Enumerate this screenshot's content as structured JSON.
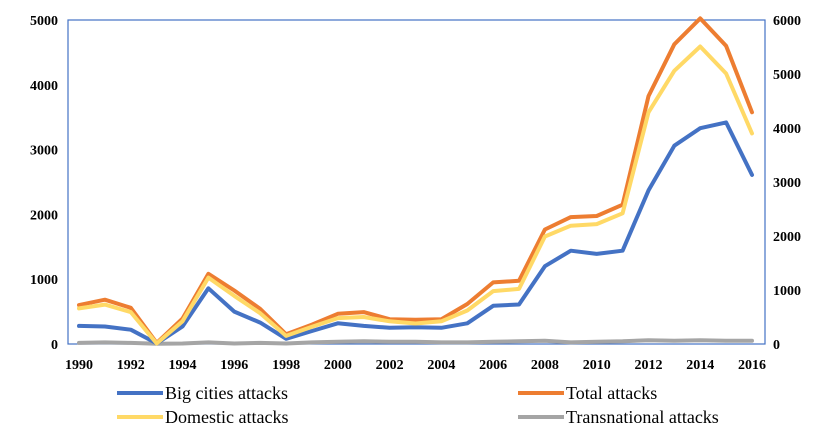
{
  "chart_data": {
    "type": "line",
    "title": "",
    "xlabel": "",
    "ylabel": "",
    "x": [
      1990,
      1991,
      1992,
      1993,
      1994,
      1995,
      1996,
      1997,
      1998,
      1999,
      2000,
      2001,
      2002,
      2003,
      2004,
      2005,
      2006,
      2007,
      2008,
      2009,
      2010,
      2011,
      2012,
      2013,
      2014,
      2015,
      2016
    ],
    "x_tick_labels": [
      "1990",
      "1992",
      "1994",
      "1996",
      "1998",
      "2000",
      "2002",
      "2004",
      "2006",
      "2008",
      "2010",
      "2012",
      "2014",
      "2016"
    ],
    "y_left": {
      "range": [
        0,
        5000
      ],
      "ticks": [
        "0",
        "1000",
        "2000",
        "3000",
        "4000",
        "5000"
      ]
    },
    "y_right": {
      "range": [
        0,
        6000
      ],
      "ticks": [
        "0",
        "1000",
        "2000",
        "3000",
        "4000",
        "5000",
        "6000"
      ]
    },
    "grid": false,
    "legend_position": "bottom",
    "series": [
      {
        "name": "Big cities attacks",
        "axis": "left",
        "color": "#4472C4",
        "values": [
          280,
          270,
          220,
          10,
          270,
          860,
          500,
          330,
          80,
          200,
          320,
          280,
          250,
          260,
          250,
          320,
          590,
          610,
          1200,
          1440,
          1390,
          1440,
          2370,
          3060,
          3330,
          3420,
          2610
        ]
      },
      {
        "name": "Total attacks",
        "axis": "right",
        "color": "#ED7D31",
        "values": [
          720,
          820,
          670,
          20,
          470,
          1300,
          990,
          650,
          180,
          360,
          560,
          590,
          460,
          450,
          460,
          740,
          1140,
          1170,
          2120,
          2350,
          2370,
          2580,
          4590,
          5550,
          6030,
          5520,
          4290
        ]
      },
      {
        "name": "Domestic attacks",
        "axis": "right",
        "color": "#FFD966",
        "values": [
          660,
          730,
          590,
          10,
          420,
          1230,
          890,
          570,
          150,
          320,
          480,
          500,
          420,
          380,
          420,
          620,
          980,
          1020,
          1990,
          2190,
          2220,
          2420,
          4290,
          5060,
          5510,
          5010,
          3900
        ]
      },
      {
        "name": "Transnational attacks",
        "axis": "right",
        "color": "#A5A5A5",
        "values": [
          20,
          30,
          20,
          5,
          10,
          30,
          10,
          20,
          10,
          30,
          40,
          50,
          40,
          40,
          30,
          30,
          40,
          50,
          60,
          30,
          40,
          50,
          70,
          60,
          70,
          60,
          60
        ]
      }
    ]
  }
}
